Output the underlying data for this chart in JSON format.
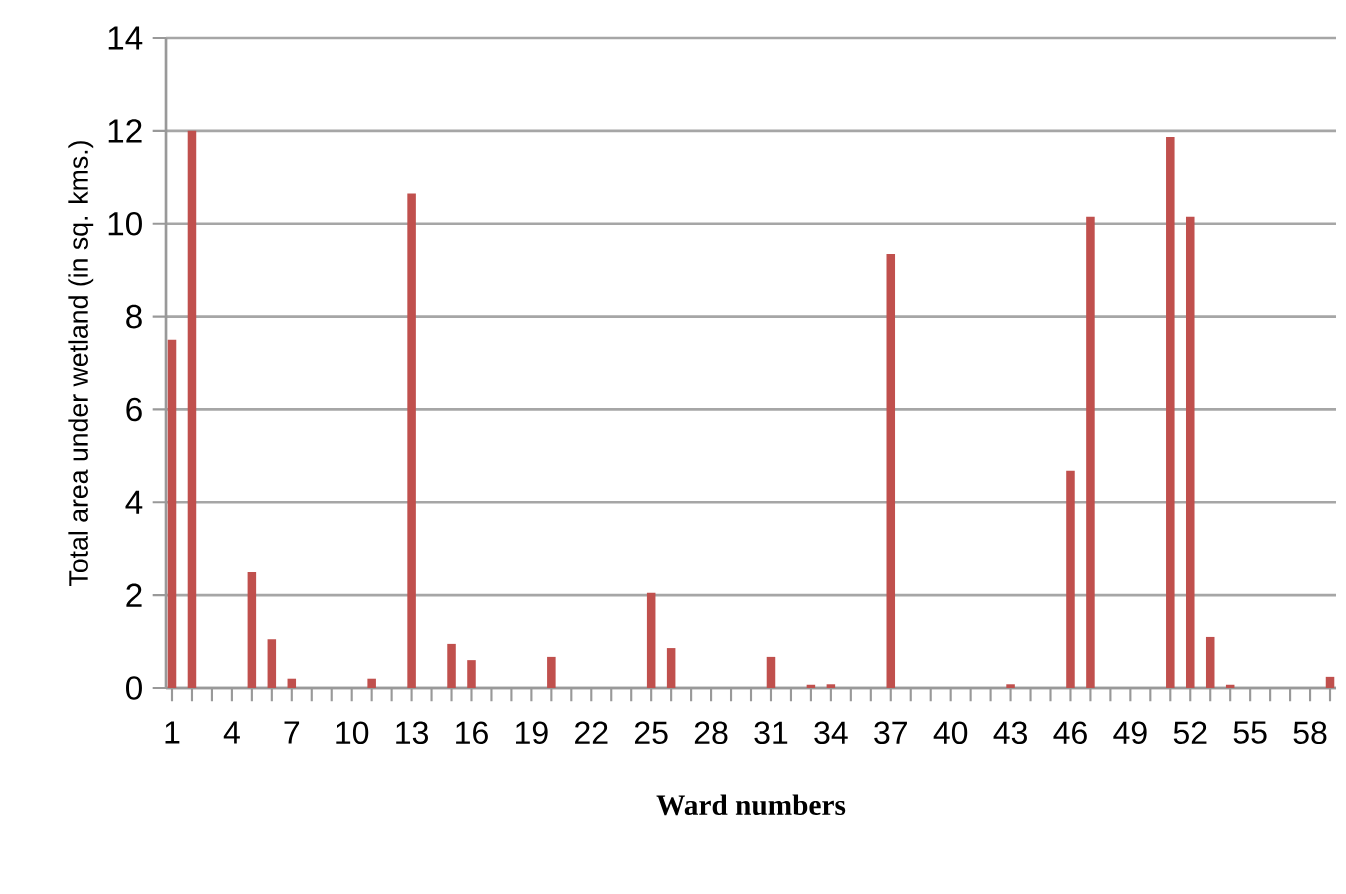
{
  "chart_data": {
    "type": "bar",
    "xlabel": "Ward numbers",
    "ylabel": "Total area under wetland (in sq. kms.)",
    "categories": [
      "1",
      null,
      null,
      "4",
      null,
      null,
      "7",
      null,
      null,
      "10",
      null,
      null,
      "13",
      null,
      null,
      "16",
      null,
      null,
      "19",
      null,
      null,
      "22",
      null,
      null,
      "25",
      null,
      null,
      "28",
      null,
      null,
      "31",
      null,
      null,
      "34",
      null,
      null,
      "37",
      null,
      null,
      "40",
      null,
      null,
      "43",
      null,
      null,
      "46",
      null,
      null,
      "49",
      null,
      null,
      "52",
      null,
      null,
      "55",
      null,
      null,
      "58",
      null
    ],
    "values": [
      7.5,
      12.0,
      0,
      0,
      2.5,
      1.05,
      0.2,
      0,
      0,
      0,
      0.2,
      0,
      10.65,
      0,
      0.95,
      0.6,
      0,
      0,
      0,
      0.67,
      0,
      0,
      0,
      0,
      2.05,
      0.86,
      0,
      0,
      0,
      0,
      0.67,
      0,
      0.07,
      0.08,
      0,
      0,
      9.35,
      0,
      0,
      0,
      0,
      0,
      0.08,
      0,
      0,
      4.68,
      10.15,
      0,
      0,
      0,
      11.87,
      10.15,
      1.1,
      0.07,
      0,
      0,
      0,
      0,
      0.24
    ],
    "color": "#c0504d",
    "ylim": [
      0,
      14
    ],
    "yticks": [
      0,
      2,
      4,
      6,
      8,
      10,
      12,
      14
    ],
    "grid": "y"
  }
}
